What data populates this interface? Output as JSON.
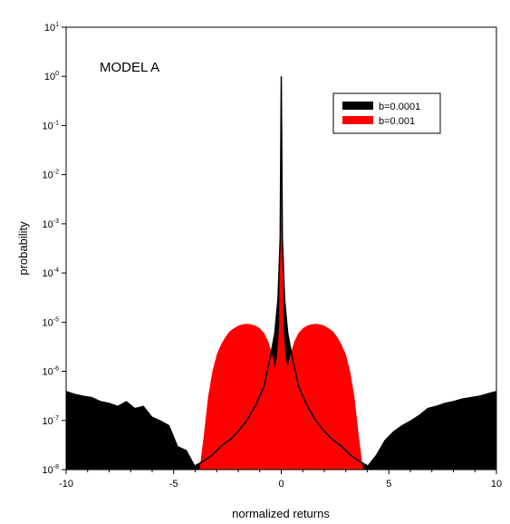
{
  "chart_data": {
    "type": "area",
    "annotation": "MODEL A",
    "xlabel": "normalized returns",
    "ylabel": "probability",
    "xlim": [
      -10,
      10
    ],
    "ylim": [
      1e-08,
      10
    ],
    "yscale": "log",
    "grid": false,
    "legend_position": "top-right",
    "x_ticks": [
      -10,
      -5,
      0,
      5,
      10
    ],
    "y_tick_exponents": [
      1,
      0,
      -1,
      -2,
      -3,
      -4,
      -5,
      -6,
      -7,
      -8
    ],
    "series": [
      {
        "name": "b=0.0001",
        "color": "#000000",
        "x": [
          -10.0,
          -9.6,
          -9.2,
          -8.8,
          -8.4,
          -8.0,
          -7.6,
          -7.2,
          -6.8,
          -6.4,
          -6.0,
          -5.6,
          -5.2,
          -4.8,
          -4.4,
          -4.0,
          -3.6,
          -3.2,
          -2.8,
          -2.4,
          -2.0,
          -1.6,
          -1.2,
          -0.8,
          -0.5,
          -0.3,
          -0.15,
          -0.05,
          0.0,
          0.05,
          0.15,
          0.3,
          0.5,
          0.8,
          1.2,
          1.6,
          2.0,
          2.4,
          2.8,
          3.2,
          3.6,
          4.0,
          4.4,
          4.8,
          5.2,
          5.6,
          6.0,
          6.4,
          6.8,
          7.2,
          7.6,
          8.0,
          8.4,
          8.8,
          9.2,
          9.6,
          10.0
        ],
        "y": [
          4e-07,
          3.5e-07,
          3.2e-07,
          3e-07,
          2.5e-07,
          2.3e-07,
          2e-07,
          2.5e-07,
          1.8e-07,
          2e-07,
          1.2e-07,
          1e-07,
          8e-08,
          3e-08,
          2.5e-08,
          1.2e-08,
          1.5e-08,
          2e-08,
          3e-08,
          4e-08,
          6e-08,
          1e-07,
          2e-07,
          5e-07,
          2e-06,
          6e-06,
          3e-05,
          0.0005,
          1.0,
          0.0005,
          3e-05,
          6e-06,
          2e-06,
          5e-07,
          2e-07,
          1e-07,
          6e-08,
          4e-08,
          3e-08,
          2e-08,
          1.5e-08,
          1.2e-08,
          2e-08,
          4e-08,
          6e-08,
          8e-08,
          1e-07,
          1.3e-07,
          1.8e-07,
          2e-07,
          2.3e-07,
          2.5e-07,
          2.8e-07,
          3e-07,
          3.2e-07,
          3.6e-07,
          4e-07
        ]
      },
      {
        "name": "b=0.001",
        "color": "#ff0000",
        "x": [
          -3.8,
          -3.6,
          -3.4,
          -3.2,
          -3.0,
          -2.8,
          -2.6,
          -2.4,
          -2.2,
          -2.0,
          -1.8,
          -1.6,
          -1.4,
          -1.2,
          -1.0,
          -0.8,
          -0.6,
          -0.4,
          -0.3,
          -0.2,
          -0.1,
          0.0,
          0.1,
          0.2,
          0.3,
          0.4,
          0.6,
          0.8,
          1.0,
          1.2,
          1.4,
          1.6,
          1.8,
          2.0,
          2.2,
          2.4,
          2.6,
          2.8,
          3.0,
          3.2,
          3.4,
          3.6,
          3.8
        ],
        "y": [
          1e-08,
          5e-08,
          3e-07,
          1e-06,
          2.2e-06,
          3.5e-06,
          5e-06,
          6.5e-06,
          7.5e-06,
          8.5e-06,
          9e-06,
          9.2e-06,
          9e-06,
          8.5e-06,
          7.5e-06,
          6e-06,
          4e-06,
          2e-06,
          1.2e-06,
          2e-06,
          8e-06,
          1.0,
          8e-06,
          2e-06,
          1.2e-06,
          2e-06,
          4e-06,
          6e-06,
          7.5e-06,
          8.5e-06,
          9e-06,
          9.2e-06,
          9e-06,
          8.5e-06,
          7.5e-06,
          6.5e-06,
          5e-06,
          3.5e-06,
          2.2e-06,
          1e-06,
          3e-07,
          5e-08,
          1e-08
        ]
      }
    ]
  }
}
